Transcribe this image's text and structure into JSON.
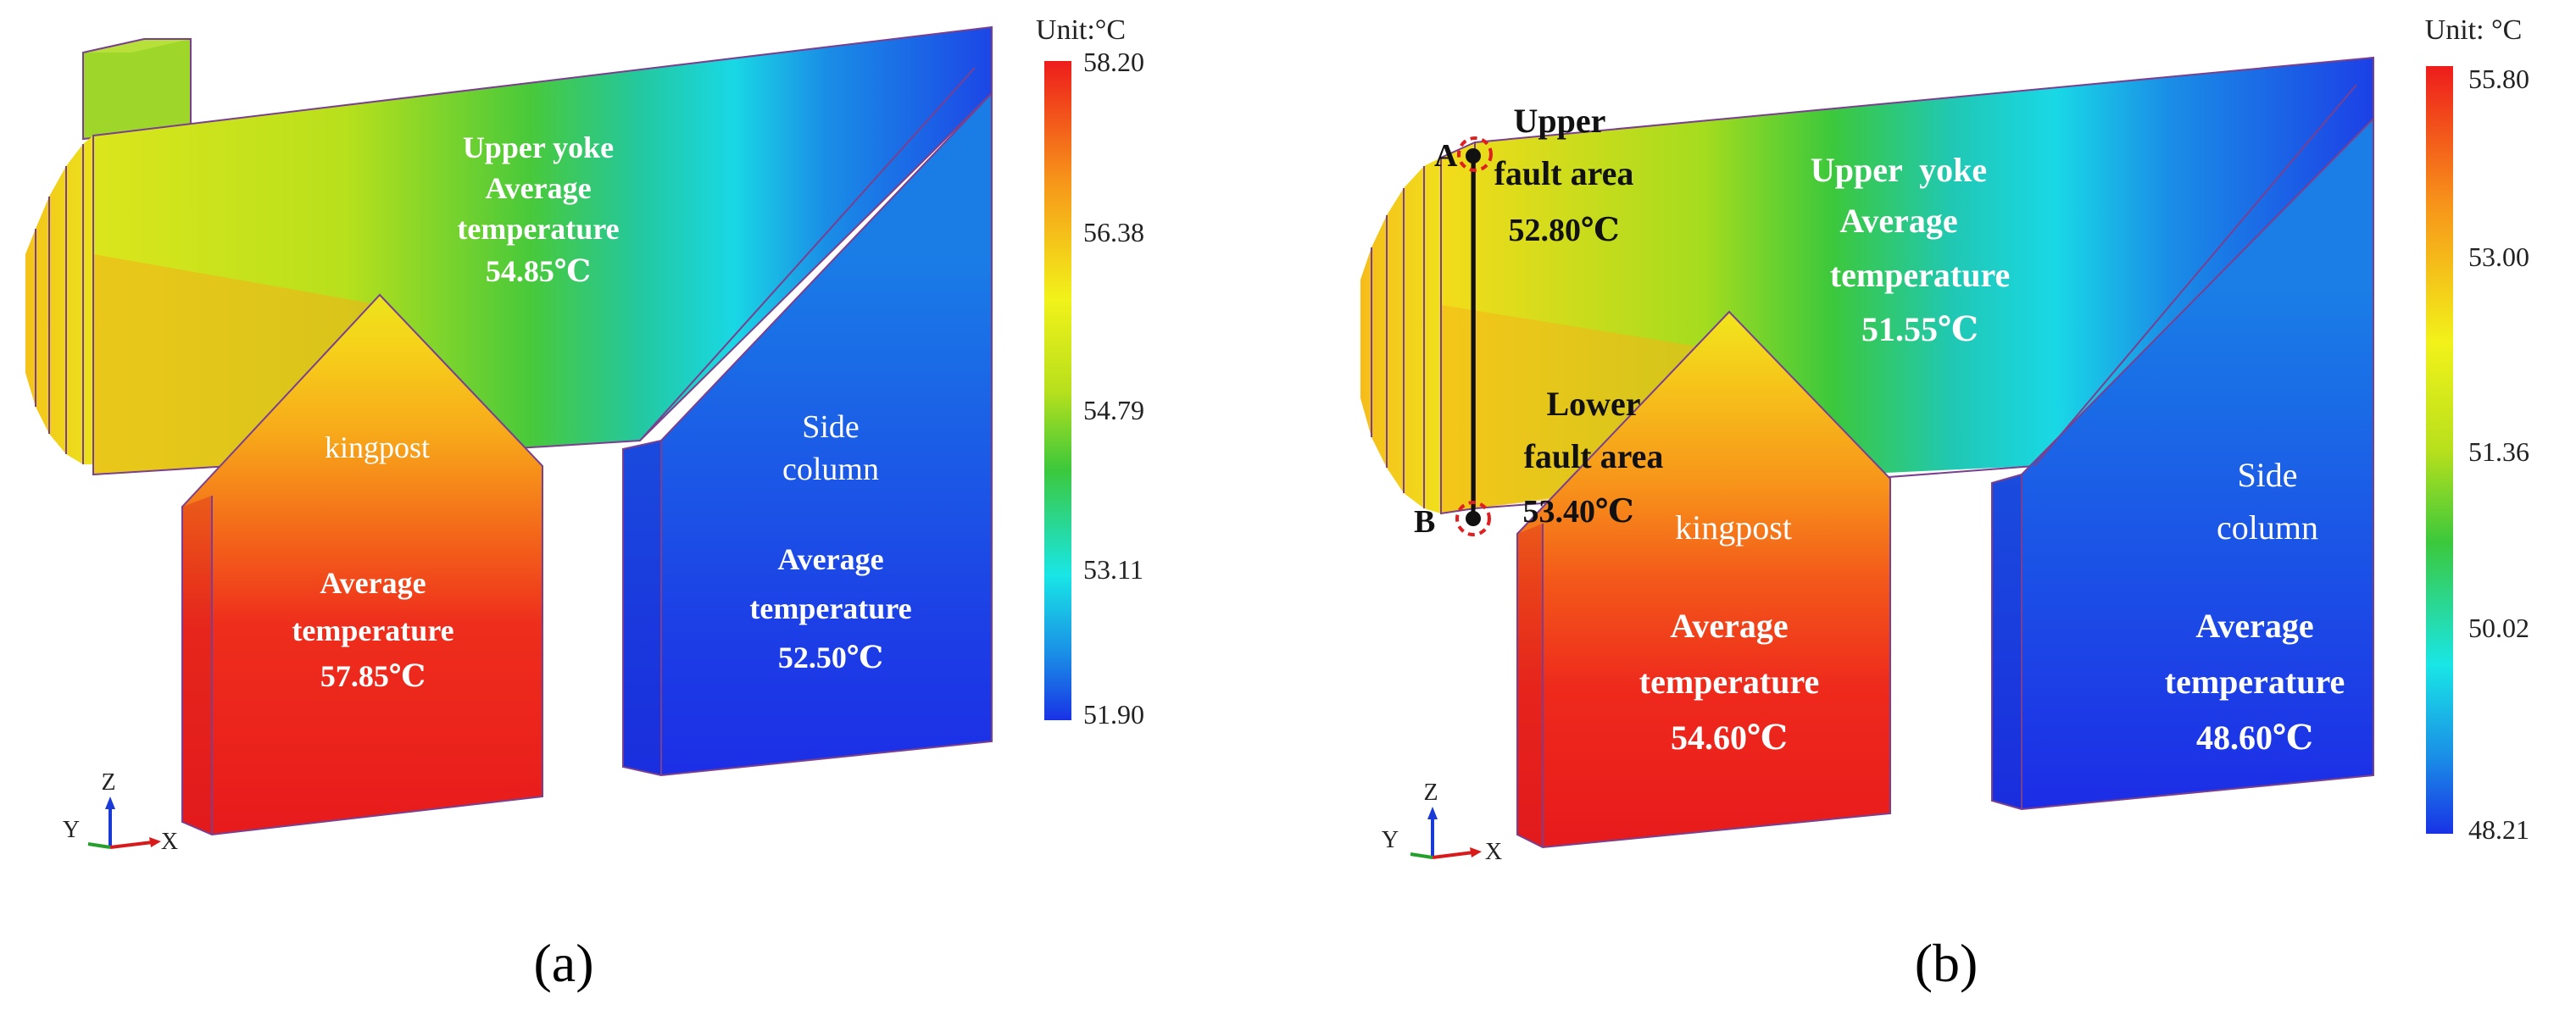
{
  "colors": {
    "red": "#ee1c1c",
    "orange": "#f7a11a",
    "yellow": "#f2f21a",
    "green": "#3cc83c",
    "cyan": "#19e6e6",
    "blue": "#1932e6",
    "marker": "#e02020"
  },
  "panel_a": {
    "unit": "Unit:°C",
    "legend_ticks": [
      "58.20",
      "56.38",
      "54.79",
      "53.11",
      "51.90"
    ],
    "legend_min": 51.9,
    "legend_max": 58.2,
    "regions": {
      "upper_yoke": {
        "lines": [
          "Upper yoke",
          "Average",
          "temperature",
          "54.85℃"
        ],
        "value": 54.85
      },
      "kingpost": {
        "name": "kingpost",
        "lines": [
          "Average",
          "temperature",
          "57.85℃"
        ],
        "value": 57.85
      },
      "side_column": {
        "lines": [
          "Side",
          "column",
          "Average",
          "temperature",
          "52.50℃"
        ],
        "value": 52.5
      }
    },
    "caption": "(a)"
  },
  "panel_b": {
    "unit": "Unit: °C",
    "legend_ticks": [
      "55.80",
      "53.00",
      "51.36",
      "50.02",
      "48.21"
    ],
    "legend_min": 48.21,
    "legend_max": 55.8,
    "regions": {
      "upper_yoke": {
        "lines": [
          "Upper  yoke",
          "Average",
          "temperature",
          "51.55℃"
        ],
        "value": 51.55
      },
      "kingpost": {
        "name": "kingpost",
        "lines": [
          "Average",
          "temperature",
          "54.60℃"
        ],
        "value": 54.6
      },
      "side_column": {
        "lines": [
          "Side",
          "column",
          "Average",
          "temperature",
          "48.60℃"
        ],
        "value": 48.6
      }
    },
    "upper_fault": {
      "lines": [
        "Upper",
        "fault area",
        "52.80℃"
      ],
      "value": 52.8,
      "point": "A"
    },
    "lower_fault": {
      "lines": [
        "Lower",
        "fault area",
        "53.40℃"
      ],
      "value": 53.4,
      "point": "B"
    },
    "caption": "(b)"
  },
  "axes_triad": {
    "z": "Z",
    "y": "Y",
    "x": "X"
  }
}
